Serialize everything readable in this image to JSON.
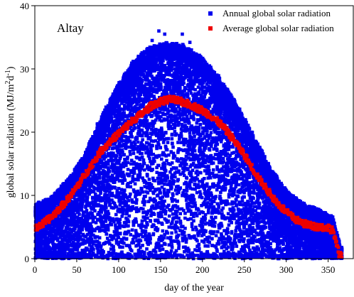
{
  "chart_data": {
    "type": "scatter",
    "annotation": "Altay",
    "xlabel": "day of the year",
    "ylabel_main": "global solar radiation  (MJ/m",
    "ylabel_sup1": "2",
    "ylabel_mid": "d",
    "ylabel_sup2": "-1",
    "ylabel_end": ")",
    "xlim": [
      0,
      380
    ],
    "ylim": [
      0,
      40
    ],
    "xticks": [
      0,
      50,
      100,
      150,
      200,
      250,
      300,
      350
    ],
    "yticks": [
      0,
      10,
      20,
      30,
      40
    ],
    "grid": false,
    "legend_position": "top-right",
    "series": [
      {
        "name": "Annual global solar radiation",
        "color": "#0000ee",
        "marker": "square",
        "description": "daily values from many years; dense cloud between ~0 and an upper envelope",
        "upper_envelope": [
          [
            0,
            8
          ],
          [
            20,
            9
          ],
          [
            40,
            12
          ],
          [
            60,
            16
          ],
          [
            80,
            22
          ],
          [
            100,
            27
          ],
          [
            120,
            31
          ],
          [
            140,
            33
          ],
          [
            160,
            33.5
          ],
          [
            180,
            33
          ],
          [
            200,
            31
          ],
          [
            220,
            28
          ],
          [
            240,
            24
          ],
          [
            260,
            19
          ],
          [
            280,
            14
          ],
          [
            300,
            10
          ],
          [
            320,
            8
          ],
          [
            340,
            7
          ],
          [
            355,
            6
          ],
          [
            365,
            1
          ]
        ],
        "peak_outliers": [
          [
            148,
            36
          ],
          [
            155,
            35.5
          ],
          [
            176,
            35.5
          ],
          [
            140,
            34.5
          ],
          [
            185,
            34.2
          ]
        ]
      },
      {
        "name": "Average global solar radiation",
        "color": "#ee0000",
        "marker": "square",
        "curve": [
          [
            0,
            4.8
          ],
          [
            10,
            5.5
          ],
          [
            20,
            6.6
          ],
          [
            30,
            8
          ],
          [
            40,
            9.5
          ],
          [
            50,
            11.3
          ],
          [
            60,
            13.3
          ],
          [
            70,
            15.3
          ],
          [
            80,
            17.2
          ],
          [
            90,
            18.5
          ],
          [
            100,
            19.8
          ],
          [
            110,
            21
          ],
          [
            120,
            22.2
          ],
          [
            130,
            23.1
          ],
          [
            140,
            24.3
          ],
          [
            150,
            24.8
          ],
          [
            160,
            25.2
          ],
          [
            170,
            25
          ],
          [
            180,
            24.6
          ],
          [
            190,
            24.1
          ],
          [
            200,
            23.4
          ],
          [
            210,
            22.6
          ],
          [
            220,
            21.5
          ],
          [
            230,
            20
          ],
          [
            240,
            18.3
          ],
          [
            250,
            16.4
          ],
          [
            260,
            14.2
          ],
          [
            270,
            12.2
          ],
          [
            280,
            10.4
          ],
          [
            290,
            8.7
          ],
          [
            300,
            7.4
          ],
          [
            310,
            6.3
          ],
          [
            320,
            5.6
          ],
          [
            330,
            5.2
          ],
          [
            340,
            5
          ],
          [
            350,
            4.9
          ],
          [
            356,
            4.4
          ],
          [
            360,
            2.2
          ],
          [
            363,
            0.8
          ],
          [
            366,
            0.3
          ]
        ]
      }
    ]
  },
  "colors": {
    "scatter_blue": "#0000ee",
    "average_red": "#ee0000"
  }
}
